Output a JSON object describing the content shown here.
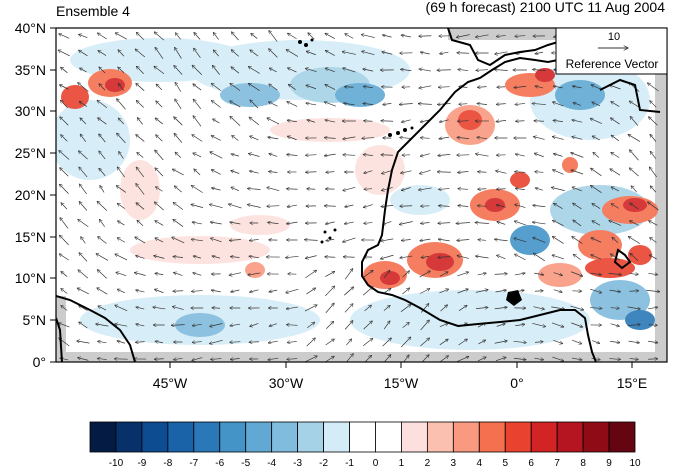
{
  "title_left": "Ensemble 4",
  "title_right": "(69 h forecast) 2100 UTC 11 Aug 2004",
  "lat_labels": [
    "40°N",
    "35°N",
    "30°N",
    "25°N",
    "20°N",
    "15°N",
    "10°N",
    "5°N",
    "0°"
  ],
  "lon_labels": [
    "45°W",
    "30°W",
    "15°W",
    "0°",
    "15°E"
  ],
  "reference_vector": {
    "value": "10",
    "label": "Reference Vector"
  },
  "colorbar": {
    "labels": [
      "-10",
      "-9",
      "-8",
      "-7",
      "-6",
      "-5",
      "-4",
      "-3",
      "-2",
      "-1",
      "0",
      "1",
      "2",
      "3",
      "4",
      "5",
      "6",
      "7",
      "8",
      "9",
      "10"
    ],
    "colors": [
      "#041b44",
      "#08306b",
      "#0d4c91",
      "#1a63a8",
      "#2b78b8",
      "#4494c8",
      "#61a9d4",
      "#80bcdd",
      "#a6d2e7",
      "#d3ecf7",
      "#ffffff",
      "#ffffff",
      "#fde0dd",
      "#fbc0b0",
      "#f99a80",
      "#f4704f",
      "#e94330",
      "#d22424",
      "#b51520",
      "#8f0c16",
      "#650512"
    ]
  },
  "map": {
    "lat_range": [
      0,
      40
    ],
    "lon_range": [
      -60,
      20
    ],
    "ocean_color": "#ffffff",
    "missing_color": "#cccccc",
    "coast_color": "#000000"
  }
}
